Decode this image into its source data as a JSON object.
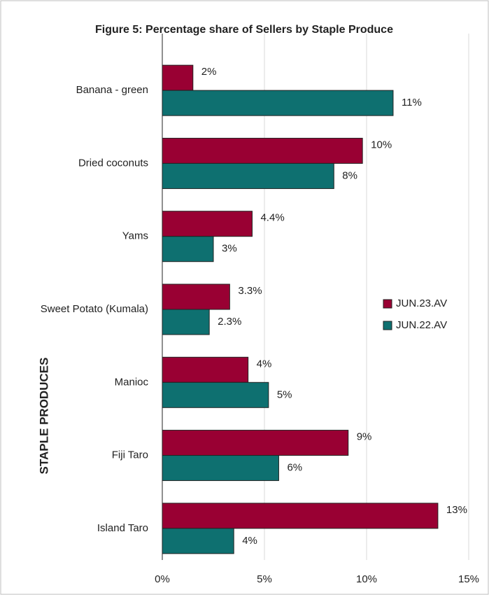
{
  "chart_data": {
    "type": "hbar",
    "title": "Figure 5: Percentage share of Sellers by Staple Produce",
    "y_label": "STAPLE PRODUCES",
    "categories": [
      "Banana - green",
      "Dried coconuts",
      "Yams",
      "Sweet Potato (Kumala)",
      "Manioc",
      "Fiji Taro",
      "Island Taro"
    ],
    "series": [
      {
        "name": "JUN.23.AV",
        "color": "#990033",
        "values": [
          1.5,
          9.8,
          4.4,
          3.3,
          4.2,
          9.1,
          13.49
        ],
        "value_labels": [
          "2%",
          "10%",
          "4.4%",
          "3.3%",
          "4%",
          "9%",
          "13%"
        ]
      },
      {
        "name": "JUN.22.AV",
        "color": "#0e7070",
        "values": [
          11.3,
          8.4,
          2.5,
          2.3,
          5.2,
          5.7,
          3.5
        ],
        "value_labels": [
          "11%",
          "8%",
          "3%",
          "2.3%",
          "5%",
          "6%",
          "4%"
        ]
      }
    ],
    "xlim": [
      0,
      15
    ],
    "xticks": [
      {
        "value": 0,
        "label": "0%"
      },
      {
        "value": 5,
        "label": "5%"
      },
      {
        "value": 10,
        "label": "10%"
      },
      {
        "value": 15,
        "label": "15%"
      }
    ],
    "grid": true,
    "legend": "right"
  }
}
